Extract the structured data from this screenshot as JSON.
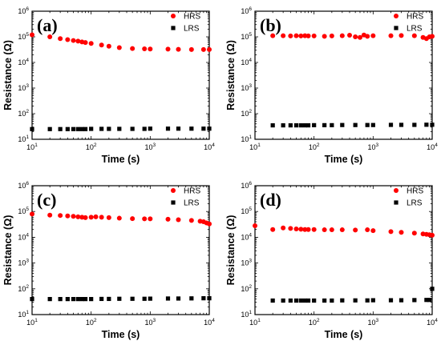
{
  "chart_data": [
    {
      "type": "scatter",
      "panel_label": "(a)",
      "xlabel": "Time (s)",
      "ylabel": "Resistance (Ω)",
      "x_scale": "log",
      "y_scale": "log",
      "xlim": [
        10,
        10000
      ],
      "ylim": [
        10,
        1000000
      ],
      "x_ticks": [
        "10^1",
        "10^2",
        "10^3",
        "10^4"
      ],
      "y_ticks": [
        "10^1",
        "10^2",
        "10^3",
        "10^4",
        "10^5",
        "10^6"
      ],
      "legend": "top-right",
      "series": [
        {
          "name": "HRS",
          "marker": "circle",
          "color": "#ff0000",
          "x": [
            10,
            20,
            30,
            40,
            50,
            60,
            70,
            80,
            100,
            150,
            200,
            300,
            500,
            800,
            1000,
            2000,
            3000,
            5000,
            8000,
            10000
          ],
          "y": [
            120000,
            100000,
            85000,
            78000,
            72000,
            68000,
            63000,
            60000,
            55000,
            48000,
            43000,
            38000,
            35000,
            34000,
            33500,
            33000,
            32500,
            32000,
            32000,
            32000
          ]
        },
        {
          "name": "LRS",
          "marker": "square",
          "color": "#000000",
          "x": [
            10,
            20,
            30,
            40,
            50,
            60,
            70,
            80,
            100,
            150,
            200,
            300,
            500,
            800,
            1000,
            2000,
            3000,
            5000,
            8000,
            10000
          ],
          "y": [
            25,
            25,
            25,
            25,
            25,
            25,
            25,
            25,
            25.5,
            25.5,
            25.5,
            25.5,
            25.5,
            25.5,
            26,
            26,
            26,
            26,
            26,
            26
          ]
        }
      ]
    },
    {
      "type": "scatter",
      "panel_label": "(b)",
      "xlabel": "Time (s)",
      "ylabel": "Resistance (Ω)",
      "x_scale": "log",
      "y_scale": "log",
      "xlim": [
        10,
        10000
      ],
      "ylim": [
        10,
        1000000
      ],
      "x_ticks": [
        "10^1",
        "10^2",
        "10^3",
        "10^4"
      ],
      "y_ticks": [
        "10^1",
        "10^2",
        "10^3",
        "10^4",
        "10^5",
        "10^6"
      ],
      "legend": "top-right",
      "series": [
        {
          "name": "HRS",
          "marker": "circle",
          "color": "#ff0000",
          "x": [
            20,
            30,
            40,
            50,
            60,
            70,
            80,
            100,
            150,
            200,
            300,
            400,
            500,
            600,
            700,
            800,
            1000,
            2000,
            3000,
            5000,
            7000,
            8000,
            9000,
            10000
          ],
          "y": [
            110000,
            110000,
            108000,
            110000,
            108000,
            110000,
            108000,
            108000,
            105000,
            108000,
            110000,
            115000,
            100000,
            95000,
            118000,
            105000,
            110000,
            110000,
            112000,
            110000,
            95000,
            85000,
            100000,
            105000
          ]
        },
        {
          "name": "LRS",
          "marker": "square",
          "color": "#000000",
          "x": [
            20,
            30,
            40,
            50,
            60,
            70,
            80,
            100,
            150,
            200,
            300,
            500,
            800,
            1000,
            2000,
            3000,
            5000,
            8000,
            10000
          ],
          "y": [
            35,
            35,
            35,
            35,
            35,
            35,
            35,
            35.5,
            35.5,
            35.5,
            36,
            36,
            36,
            36,
            36.5,
            36.5,
            36.5,
            37,
            37
          ]
        }
      ]
    },
    {
      "type": "scatter",
      "panel_label": "(c)",
      "xlabel": "Time (s)",
      "ylabel": "Resistance (Ω)",
      "x_scale": "log",
      "y_scale": "log",
      "xlim": [
        10,
        10000
      ],
      "ylim": [
        10,
        1000000
      ],
      "x_ticks": [
        "10^1",
        "10^2",
        "10^3",
        "10^4"
      ],
      "y_ticks": [
        "10^1",
        "10^2",
        "10^3",
        "10^4",
        "10^5",
        "10^6"
      ],
      "legend": "top-right",
      "series": [
        {
          "name": "HRS",
          "marker": "circle",
          "color": "#ff0000",
          "x": [
            10,
            20,
            30,
            40,
            50,
            60,
            70,
            80,
            100,
            120,
            150,
            200,
            300,
            500,
            800,
            1000,
            2000,
            3000,
            5000,
            7000,
            8000,
            9000,
            10000
          ],
          "y": [
            80000,
            72000,
            70000,
            67000,
            65000,
            62000,
            60000,
            58000,
            60000,
            62000,
            60000,
            58000,
            55000,
            53000,
            52000,
            52000,
            50000,
            48000,
            45000,
            42000,
            40000,
            36000,
            33000
          ]
        },
        {
          "name": "LRS",
          "marker": "square",
          "color": "#000000",
          "x": [
            10,
            20,
            30,
            40,
            50,
            60,
            70,
            80,
            100,
            150,
            200,
            300,
            500,
            800,
            1000,
            2000,
            3000,
            5000,
            8000,
            10000
          ],
          "y": [
            40,
            40,
            40,
            40,
            40,
            40,
            40,
            40,
            40,
            40.5,
            40.5,
            41,
            41,
            41,
            41.5,
            42,
            42,
            42.5,
            43,
            43
          ]
        }
      ]
    },
    {
      "type": "scatter",
      "panel_label": "(d)",
      "xlabel": "Time (s)",
      "ylabel": "Resistance (Ω)",
      "x_scale": "log",
      "y_scale": "log",
      "xlim": [
        10,
        10000
      ],
      "ylim": [
        10,
        1000000
      ],
      "x_ticks": [
        "10^1",
        "10^2",
        "10^3",
        "10^4"
      ],
      "y_ticks": [
        "10^1",
        "10^2",
        "10^3",
        "10^4",
        "10^5",
        "10^6"
      ],
      "legend": "top-right",
      "series": [
        {
          "name": "HRS",
          "marker": "circle",
          "color": "#ff0000",
          "x": [
            10,
            20,
            30,
            40,
            50,
            60,
            70,
            80,
            100,
            150,
            200,
            300,
            500,
            800,
            1000,
            2000,
            3000,
            5000,
            7000,
            8000,
            9000,
            10000
          ],
          "y": [
            28000,
            20000,
            23000,
            22000,
            21000,
            20500,
            20000,
            20000,
            20000,
            19500,
            19500,
            19500,
            19000,
            19500,
            18000,
            16500,
            15500,
            14500,
            13500,
            13000,
            12500,
            12000
          ]
        },
        {
          "name": "LRS",
          "marker": "square",
          "color": "#000000",
          "x": [
            20,
            30,
            40,
            50,
            60,
            70,
            80,
            100,
            150,
            200,
            300,
            500,
            800,
            1000,
            2000,
            3000,
            5000,
            8000,
            9000,
            10000
          ],
          "y": [
            35,
            35,
            35,
            35,
            35,
            35,
            35,
            35,
            35,
            35,
            35.5,
            35.5,
            35.5,
            36,
            36,
            36,
            36.5,
            37,
            37,
            100
          ]
        }
      ]
    }
  ]
}
